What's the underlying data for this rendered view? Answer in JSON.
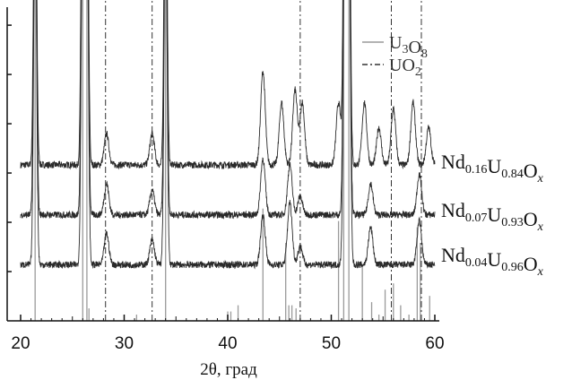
{
  "chart_data": {
    "type": "line",
    "xlabel": "2θ, град",
    "ylabel": "",
    "xlim": [
      20,
      60
    ],
    "x_ticks": [
      "20",
      "30",
      "40",
      "50",
      "60"
    ],
    "legend_position": "top-right",
    "legend": [
      {
        "base": [
          "U",
          "O"
        ],
        "subs": [
          "3",
          "8"
        ],
        "style": "solid",
        "color": "#9a9a9a"
      },
      {
        "base": [
          "U",
          "O"
        ],
        "subs": [
          "",
          "2"
        ],
        "style": "dash-dot",
        "color": "#333333"
      }
    ],
    "reference_lines": {
      "UO2": [
        28.2,
        32.7,
        47.0,
        55.8,
        58.7
      ],
      "U3O8_major": [
        21.4,
        26.0,
        26.4,
        34.0,
        51.2,
        51.7
      ],
      "U3O8_minor": [
        [
          26.6,
          0.04
        ],
        [
          31.2,
          0.02
        ],
        [
          40.0,
          0.03
        ],
        [
          40.3,
          0.03
        ],
        [
          41.0,
          0.05
        ],
        [
          43.4,
          0.36
        ],
        [
          45.6,
          0.25
        ],
        [
          45.9,
          0.05
        ],
        [
          46.2,
          0.05
        ],
        [
          46.6,
          0.04
        ],
        [
          50.7,
          0.32
        ],
        [
          53.0,
          0.18
        ],
        [
          53.9,
          0.06
        ],
        [
          54.6,
          0.02
        ],
        [
          55.2,
          0.1
        ],
        [
          56.0,
          0.12
        ],
        [
          56.7,
          0.05
        ],
        [
          57.5,
          0.02
        ],
        [
          58.3,
          0.3
        ],
        [
          58.6,
          0.25
        ],
        [
          59.5,
          0.08
        ]
      ]
    },
    "series": [
      {
        "name": "Nd0.16U0.84Ox",
        "label_parts": [
          [
            "Nd",
            "0.16"
          ],
          [
            "U",
            "0.84"
          ],
          [
            "O",
            "x"
          ]
        ],
        "baseline": 0.5,
        "peaks": [
          [
            21.4,
            1.2
          ],
          [
            26.0,
            1.3
          ],
          [
            26.4,
            1.2
          ],
          [
            28.3,
            0.1
          ],
          [
            32.7,
            0.1
          ],
          [
            34.0,
            1.2
          ],
          [
            43.4,
            0.3
          ],
          [
            45.2,
            0.2
          ],
          [
            46.5,
            0.24
          ],
          [
            47.2,
            0.2
          ],
          [
            50.7,
            0.2
          ],
          [
            51.3,
            1.2
          ],
          [
            51.7,
            1.2
          ],
          [
            53.2,
            0.2
          ],
          [
            54.6,
            0.12
          ],
          [
            56.0,
            0.18
          ],
          [
            57.9,
            0.2
          ],
          [
            59.4,
            0.12
          ]
        ]
      },
      {
        "name": "Nd0.07U0.93Ox",
        "label_parts": [
          [
            "Nd",
            "0.07"
          ],
          [
            "U",
            "0.93"
          ],
          [
            "O",
            "x"
          ]
        ],
        "baseline": 0.34,
        "peaks": [
          [
            21.4,
            1.2
          ],
          [
            26.0,
            1.3
          ],
          [
            26.4,
            1.2
          ],
          [
            28.3,
            0.1
          ],
          [
            32.7,
            0.08
          ],
          [
            34.0,
            1.2
          ],
          [
            43.4,
            0.18
          ],
          [
            46.0,
            0.16
          ],
          [
            47.0,
            0.06
          ],
          [
            51.3,
            1.2
          ],
          [
            51.7,
            1.2
          ],
          [
            53.8,
            0.1
          ],
          [
            58.5,
            0.13
          ]
        ]
      },
      {
        "name": "Nd0.04U0.96Ox",
        "label_parts": [
          [
            "Nd",
            "0.04"
          ],
          [
            "U",
            "0.96"
          ],
          [
            "O",
            "x"
          ]
        ],
        "baseline": 0.18,
        "peaks": [
          [
            21.4,
            1.2
          ],
          [
            26.0,
            1.3
          ],
          [
            26.4,
            1.2
          ],
          [
            28.3,
            0.1
          ],
          [
            32.7,
            0.08
          ],
          [
            34.0,
            1.2
          ],
          [
            43.4,
            0.16
          ],
          [
            46.0,
            0.2
          ],
          [
            47.0,
            0.06
          ],
          [
            51.3,
            1.2
          ],
          [
            51.7,
            1.2
          ],
          [
            53.8,
            0.12
          ],
          [
            58.5,
            0.14
          ]
        ]
      }
    ]
  }
}
